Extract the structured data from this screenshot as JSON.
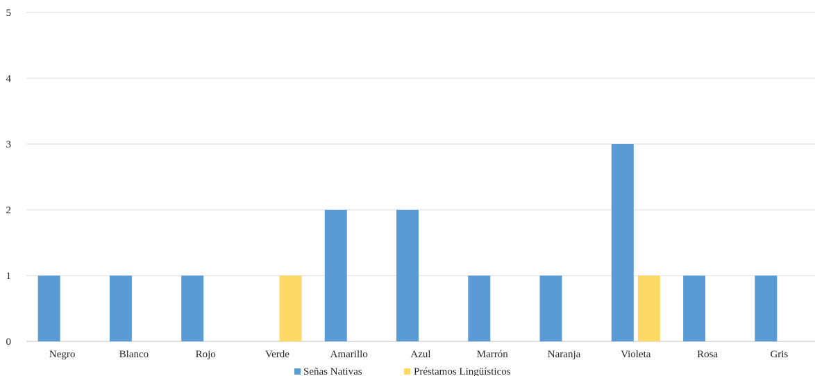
{
  "chart_data": {
    "type": "bar",
    "categories": [
      "Negro",
      "Blanco",
      "Rojo",
      "Verde",
      "Amarillo",
      "Azul",
      "Marrón",
      "Naranja",
      "Violeta",
      "Rosa",
      "Gris"
    ],
    "series": [
      {
        "name": "Señas Nativas",
        "values": [
          1,
          1,
          1,
          0,
          2,
          2,
          1,
          1,
          3,
          1,
          1
        ],
        "color": "#5b9bd5"
      },
      {
        "name": "Préstamos Lingüísticos",
        "values": [
          0,
          0,
          0,
          1,
          0,
          0,
          0,
          0,
          1,
          0,
          0
        ],
        "color": "#ffd966"
      }
    ],
    "yticks": [
      0,
      1,
      2,
      3,
      4,
      5
    ],
    "ylim": [
      0,
      5
    ],
    "grid": true,
    "legend": "bottom",
    "title": "",
    "xlabel": "",
    "ylabel": ""
  }
}
